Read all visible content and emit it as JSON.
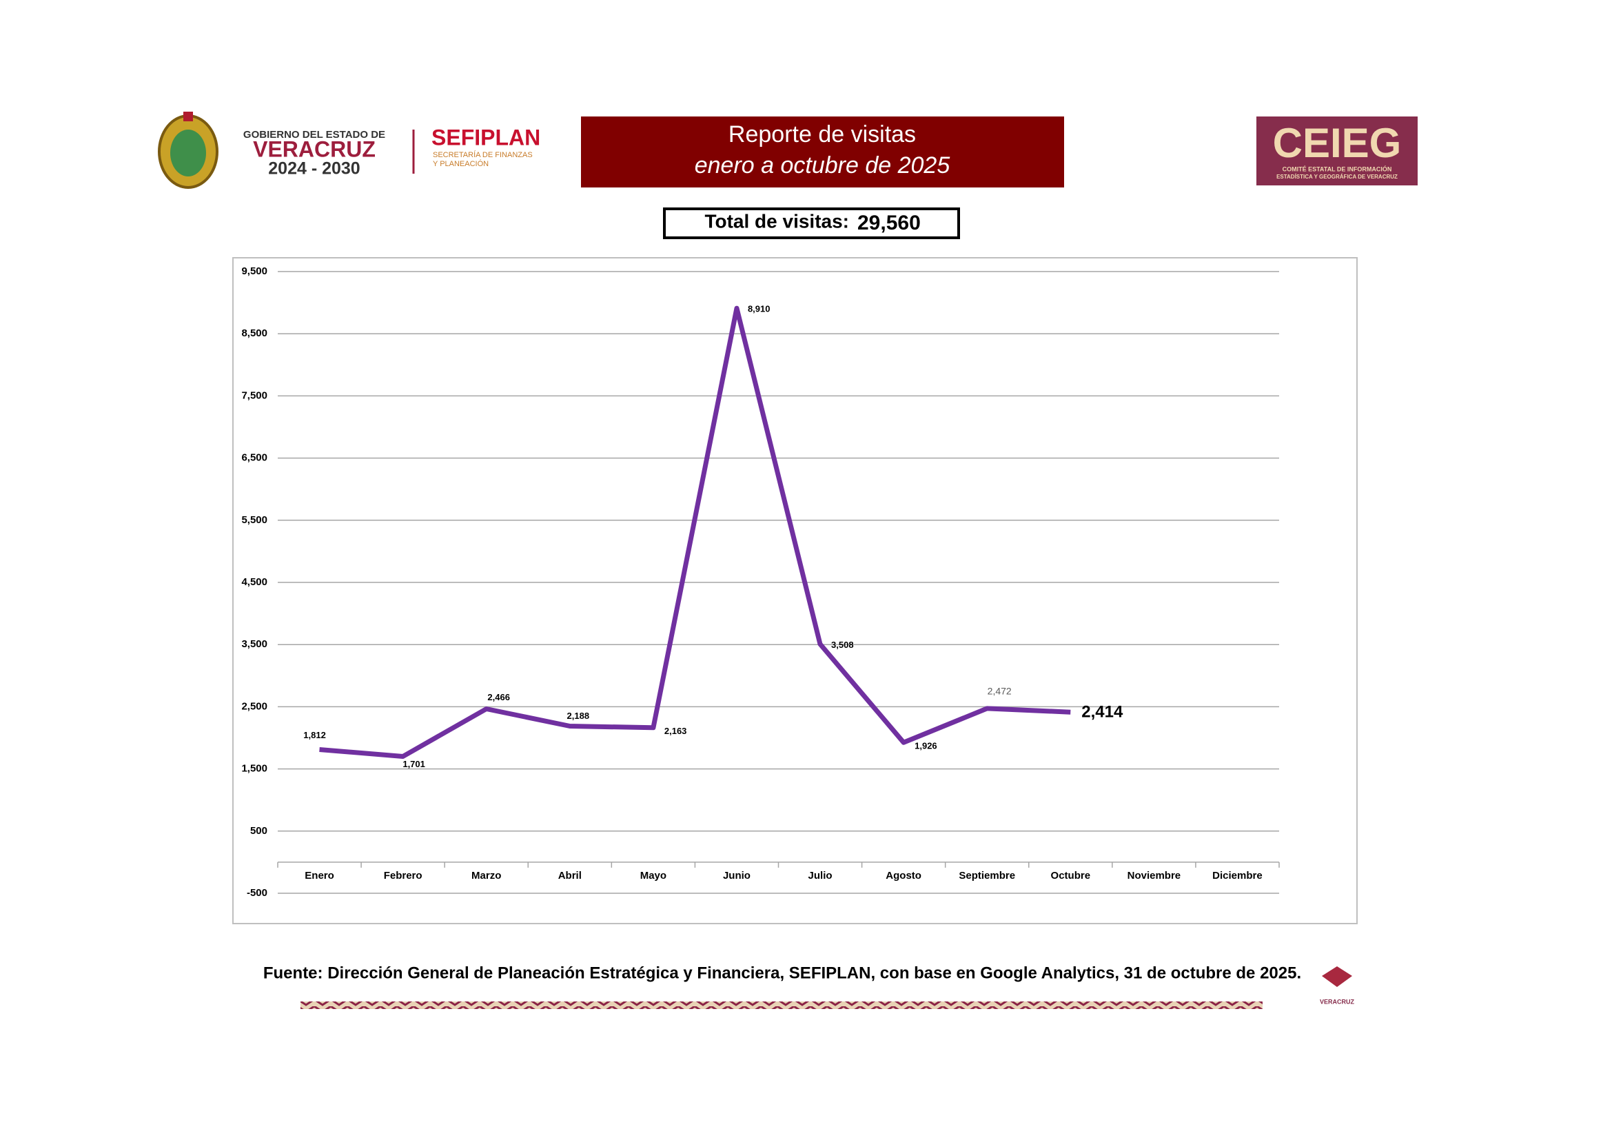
{
  "header": {
    "gov_top": "GOBIERNO DEL ESTADO DE",
    "gov_name": "VERACRUZ",
    "gov_years": "2024 - 2030",
    "agency": "SEFIPLAN",
    "agency_sub1": "SECRETARÍA DE FINANZAS",
    "agency_sub2": "Y PLANEACIÓN",
    "title_line1": "Reporte de visitas",
    "title_line2": "enero a octubre de 2025",
    "ceieg": "CEIEG",
    "ceieg_sub1": "COMITÉ ESTATAL DE INFORMACIÓN",
    "ceieg_sub2": "ESTADÍSTICA Y GEOGRÁFICA DE VERACRUZ"
  },
  "total": {
    "label": "Total de visitas:",
    "value": "29,560"
  },
  "chart_data": {
    "type": "line",
    "categories": [
      "Enero",
      "Febrero",
      "Marzo",
      "Abril",
      "Mayo",
      "Junio",
      "Julio",
      "Agosto",
      "Septiembre",
      "Octubre",
      "Noviembre",
      "Diciembre"
    ],
    "values": [
      1812,
      1701,
      2466,
      2188,
      2163,
      8910,
      3508,
      1926,
      2472,
      2414,
      null,
      null
    ],
    "value_labels": [
      "1,812",
      "1,701",
      "2,466",
      "2,188",
      "2,163",
      "8,910",
      "3,508",
      "1,926",
      "2,472",
      "2,414",
      null,
      null
    ],
    "color": "#7030a0",
    "ylim": [
      -500,
      9500
    ],
    "yticks": [
      -500,
      500,
      {
        "value": 1500,
        "label": "1,500"
      },
      {
        "value": 2500,
        "label": "2,500"
      },
      {
        "value": 3500,
        "label": "3,500"
      },
      {
        "value": 4500,
        "label": "4,500"
      },
      {
        "value": 5500,
        "label": "5,500"
      },
      {
        "value": 6500,
        "label": "6,500"
      },
      {
        "value": 7500,
        "label": "7,500"
      },
      {
        "value": 8500,
        "label": "8,500"
      },
      {
        "value": 9500,
        "label": "9,500"
      }
    ],
    "grid": true
  },
  "source": "Fuente: Dirección General de Planeación Estratégica y Financiera, SEFIPLAN, con base en Google Analytics, 31 de octubre de 2025.",
  "footer_logo": "VERACRUZ"
}
